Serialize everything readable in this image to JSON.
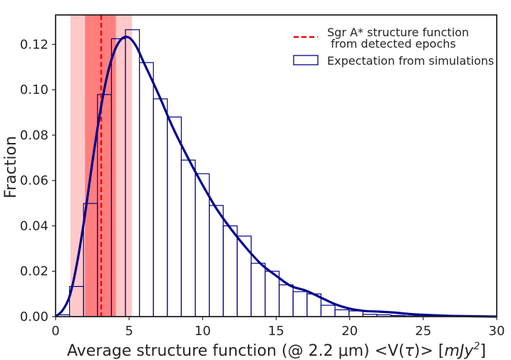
{
  "chart_data": {
    "type": "histogram",
    "xlabel": "Average structure function (@ 2.2 μm) <V(τ)> [mJy²]",
    "xlabel_parts": {
      "main": "Average structure function (@ 2.2 μm) <V(",
      "tau": "τ",
      "mid": ")> [",
      "unit": "mJy",
      "sup": "2",
      "end": "]"
    },
    "ylabel": "Fraction",
    "xlim": [
      0,
      30
    ],
    "ylim": [
      0,
      0.133
    ],
    "xticks": [
      0,
      5,
      10,
      15,
      20,
      25,
      30
    ],
    "xtick_labels": [
      "0",
      "5",
      "10",
      "15",
      "20",
      "25",
      "30"
    ],
    "yticks": [
      0.0,
      0.02,
      0.04,
      0.06,
      0.08,
      0.1,
      0.12
    ],
    "ytick_labels": [
      "0.00",
      "0.02",
      "0.04",
      "0.06",
      "0.08",
      "0.10",
      "0.12"
    ],
    "grid": false,
    "legend_position": "top-right",
    "bands": [
      {
        "x0": 1.0,
        "x1": 5.2,
        "color": "#ffc9c9"
      },
      {
        "x0": 2.0,
        "x1": 4.1,
        "color": "#ff7f7f"
      }
    ],
    "vline": {
      "x": 3.1,
      "color": "#ff0000",
      "style": "dashed"
    },
    "histogram": {
      "name": "Expectation from simulations",
      "color": "#00008b",
      "bin_edges": [
        0,
        0.95,
        1.9,
        2.85,
        3.8,
        4.75,
        5.7,
        6.65,
        7.6,
        8.55,
        9.5,
        10.45,
        11.4,
        12.35,
        13.3,
        14.25,
        15.2,
        16.15,
        17.1,
        18.05,
        19.0,
        19.95,
        20.9,
        21.85,
        22.8,
        23.75,
        24.7,
        25.65,
        26.6,
        27.55,
        28.5,
        29.45
      ],
      "fractions": [
        0.0008,
        0.0133,
        0.0499,
        0.0979,
        0.1225,
        0.1265,
        0.112,
        0.096,
        0.088,
        0.069,
        0.063,
        0.049,
        0.04,
        0.0355,
        0.0235,
        0.02,
        0.014,
        0.011,
        0.01,
        0.005,
        0.003,
        0.0025,
        0.001,
        0.0008,
        0.0005,
        0.0003,
        0.0002,
        0.0001,
        0.0001,
        0.0001,
        0.0
      ]
    },
    "kde_curve": {
      "color": "#00008b",
      "x": [
        0,
        0.5,
        1.0,
        1.5,
        2.0,
        2.5,
        3.0,
        3.5,
        4.0,
        4.5,
        5.0,
        5.5,
        6.0,
        7.0,
        8.0,
        9.0,
        10.0,
        11.0,
        12.0,
        13.0,
        14.0,
        15.0,
        16.0,
        17.0,
        18.0,
        19.0,
        20.0,
        21.0,
        22.0,
        23.0,
        24.0,
        25.0,
        27.0,
        30.0
      ],
      "y": [
        0.0,
        0.003,
        0.01,
        0.025,
        0.045,
        0.068,
        0.089,
        0.106,
        0.117,
        0.1225,
        0.123,
        0.119,
        0.112,
        0.098,
        0.083,
        0.07,
        0.058,
        0.047,
        0.038,
        0.03,
        0.023,
        0.018,
        0.0135,
        0.0115,
        0.0085,
        0.0055,
        0.0035,
        0.0025,
        0.0022,
        0.0018,
        0.0012,
        0.0008,
        0.0003,
        0.0
      ]
    },
    "legend": [
      {
        "label_line1": "Sgr A* structure function",
        "label_line2": " from detected epochs",
        "kind": "dashed-line",
        "color": "#ff0000"
      },
      {
        "label_line1": "Expectation from simulations",
        "label_line2": "",
        "kind": "box",
        "color": "#00008b"
      }
    ]
  }
}
